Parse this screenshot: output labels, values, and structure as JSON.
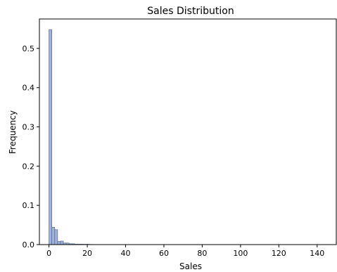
{
  "chart_data": {
    "type": "bar",
    "title": "Sales Distribution",
    "xlabel": "Sales",
    "ylabel": "Frequency",
    "xlim": [
      -5,
      150
    ],
    "ylim": [
      0,
      0.575
    ],
    "xticks": [
      0,
      20,
      40,
      60,
      80,
      100,
      120,
      140
    ],
    "yticks": [
      0.0,
      0.1,
      0.2,
      0.3,
      0.4,
      0.5
    ],
    "ytick_labels": [
      "0.0",
      "0.1",
      "0.2",
      "0.3",
      "0.4",
      "0.5"
    ],
    "grid": false,
    "color": "#8da5d4",
    "edge_color": "#4a5a80",
    "bin_width": 1.5,
    "bin_starts": [
      0,
      1.5,
      3,
      4.5,
      6,
      7.5,
      9,
      10.5,
      12,
      13.5,
      15,
      16.5,
      18,
      19.5,
      21,
      22.5,
      24,
      25.5
    ],
    "values": [
      0.548,
      0.044,
      0.038,
      0.008,
      0.009,
      0.004,
      0.004,
      0.002,
      0.002,
      0.001,
      0.001,
      0.001,
      0.0008,
      0.0008,
      0.0005,
      0.0004,
      0.0003,
      0.0002
    ]
  }
}
